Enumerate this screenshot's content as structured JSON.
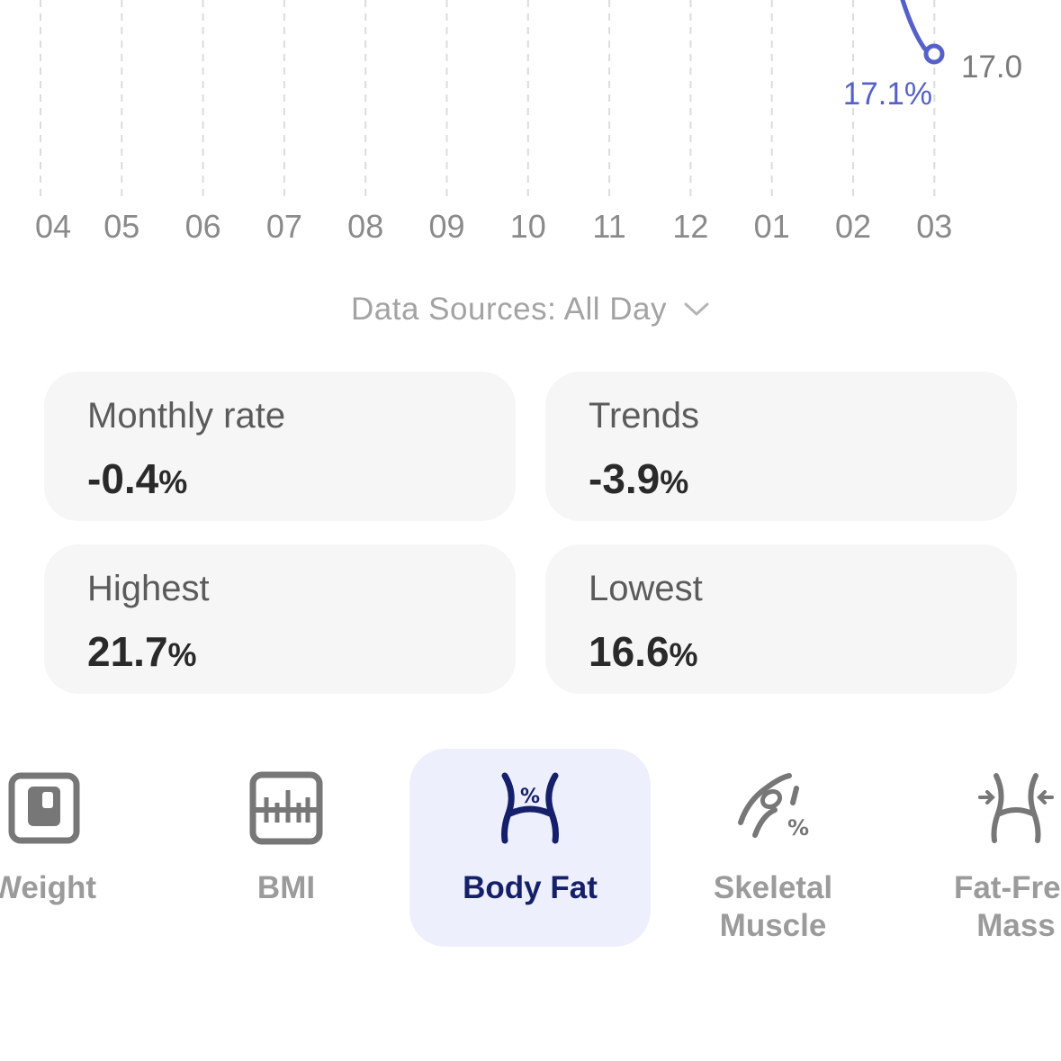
{
  "chart": {
    "x_ticks": [
      "04",
      "05",
      "06",
      "07",
      "08",
      "09",
      "10",
      "11",
      "12",
      "01",
      "02",
      "03"
    ],
    "last_point_label": "17.1%",
    "y_axis_value": "17.0",
    "line_color": "#5561c9"
  },
  "data_sources": {
    "label": "Data Sources: All Day"
  },
  "stats": {
    "monthly_rate": {
      "label": "Monthly rate",
      "value": "-0.4",
      "unit": "%"
    },
    "trends": {
      "label": "Trends",
      "value": "-3.9",
      "unit": "%"
    },
    "highest": {
      "label": "Highest",
      "value": "21.7",
      "unit": "%"
    },
    "lowest": {
      "label": "Lowest",
      "value": "16.6",
      "unit": "%"
    }
  },
  "metrics": {
    "weight": {
      "label": "Weight",
      "icon": "scale-icon"
    },
    "bmi": {
      "label": "BMI",
      "icon": "bmi-ruler-icon"
    },
    "body_fat": {
      "label": "Body Fat",
      "icon": "body-fat-icon",
      "selected": true
    },
    "skeletal_muscle": {
      "label_line1": "Skeletal",
      "label_line2": "Muscle",
      "icon": "muscle-arm-icon"
    },
    "fat_free_mass": {
      "label_line1": "Fat-Free",
      "label_line2": "Mass",
      "icon": "fat-free-mass-icon"
    }
  },
  "colors": {
    "accent": "#5561c9",
    "selected_bg": "#edf0fc",
    "selected_text": "#16206a",
    "card_bg": "#f6f6f6"
  }
}
